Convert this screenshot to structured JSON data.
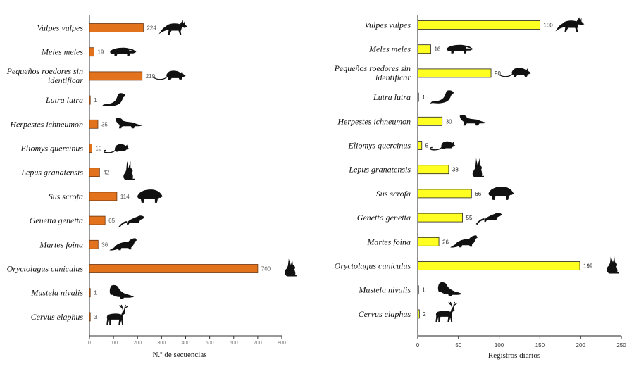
{
  "chart_data": [
    {
      "type": "bar",
      "orientation": "horizontal",
      "categories": [
        "Vulpes vulpes",
        "Meles meles",
        "Pequeños roedores sin identificar",
        "Lutra lutra",
        "Herpestes ichneumon",
        "Eliomys quercinus",
        "Lepus granatensis",
        "Sus scrofa",
        "Genetta genetta",
        "Martes foina",
        "Oryctolagus cuniculus",
        "Mustela nivalis",
        "Cervus elaphus"
      ],
      "category_lines": [
        [
          "Vulpes vulpes"
        ],
        [
          "Meles meles"
        ],
        [
          "Pequeños roedores sin",
          "identificar"
        ],
        [
          "Lutra lutra"
        ],
        [
          "Herpestes ichneumon"
        ],
        [
          "Eliomys quercinus"
        ],
        [
          "Lepus granatensis"
        ],
        [
          "Sus scrofa"
        ],
        [
          "Genetta genetta"
        ],
        [
          "Martes foina"
        ],
        [
          "Oryctolagus cuniculus"
        ],
        [
          "Mustela nivalis"
        ],
        [
          "Cervus elaphus"
        ]
      ],
      "values": [
        224,
        19,
        219,
        1,
        35,
        10,
        42,
        114,
        65,
        36,
        700,
        1,
        3
      ],
      "value_labels": [
        "224",
        "19",
        "219",
        "1",
        "35",
        "10",
        "42",
        "114",
        "65",
        "36",
        "700",
        "1",
        "3"
      ],
      "xlabel": "N.º de secuencias",
      "xlim": [
        0,
        800
      ],
      "xticks": [
        0,
        100,
        200,
        300,
        400,
        500,
        600,
        700,
        800
      ],
      "xtick_labels": [
        "0",
        "100",
        "200",
        "300",
        "400",
        "500",
        "600",
        "700",
        "800"
      ],
      "bar_color": "#e2731c",
      "bar_edge_color": "#6b3510",
      "icons": [
        "fox-icon",
        "badger-icon",
        "rat-icon",
        "otter-icon",
        "mongoose-icon",
        "dormouse-icon",
        "hare-icon",
        "boar-icon",
        "genet-icon",
        "marten-icon",
        "rabbit-icon",
        "weasel-icon",
        "deer-icon"
      ]
    },
    {
      "type": "bar",
      "orientation": "horizontal",
      "categories": [
        "Vulpes vulpes",
        "Meles meles",
        "Pequeños roedores sin identificar",
        "Lutra lutra",
        "Herpestes ichneumon",
        "Eliomys quercinus",
        "Lepus granatensis",
        "Sus scrofa",
        "Genetta genetta",
        "Martes foina",
        "Oryctolagus cuniculus",
        "Mustela nivalis",
        "Cervus elaphus"
      ],
      "category_lines": [
        [
          "Vulpes vulpes"
        ],
        [
          "Meles meles"
        ],
        [
          "Pequeños roedores sin",
          "identificar"
        ],
        [
          "Lutra lutra"
        ],
        [
          "Herpestes ichneumon"
        ],
        [
          "Eliomys quercinus"
        ],
        [
          "Lepus granatensis"
        ],
        [
          "Sus scrofa"
        ],
        [
          "Genetta genetta"
        ],
        [
          "Martes foina"
        ],
        [
          "Oryctolagus cuniculus"
        ],
        [
          "Mustela nivalis"
        ],
        [
          "Cervus elaphus"
        ]
      ],
      "values": [
        150,
        16,
        90,
        1,
        30,
        5,
        38,
        66,
        55,
        26,
        199,
        1,
        2
      ],
      "value_labels": [
        "150",
        "16",
        "90",
        "1",
        "30",
        "5",
        "38",
        "66",
        "55",
        "26",
        "199",
        "1",
        "2"
      ],
      "xlabel": "Registros diarios",
      "xlim": [
        0,
        250
      ],
      "xticks": [
        0,
        50,
        100,
        150,
        200,
        250
      ],
      "xtick_labels": [
        "0",
        "50",
        "100",
        "150",
        "200",
        "250"
      ],
      "bar_color": "#ffff22",
      "bar_edge_color": "#222222",
      "icons": [
        "fox-icon",
        "badger-icon",
        "rat-icon",
        "otter-icon",
        "mongoose-icon",
        "dormouse-icon",
        "hare-icon",
        "boar-icon",
        "genet-icon",
        "marten-icon",
        "rabbit-icon",
        "weasel-icon",
        "deer-icon"
      ]
    }
  ]
}
